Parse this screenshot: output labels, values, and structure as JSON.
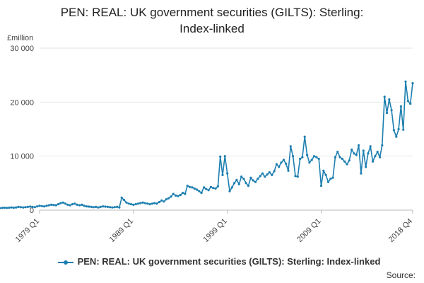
{
  "chart_data": {
    "type": "line",
    "title": [
      "PEN: REAL: UK government securities (GILTS): Sterling:",
      "Index-linked"
    ],
    "ylabel": "£million",
    "ylim": [
      0,
      30000
    ],
    "yticks": [
      0,
      10000,
      20000,
      30000
    ],
    "ytick_labels": [
      "0",
      "10 000",
      "20 000",
      "30 000"
    ],
    "xticks": [
      "1979 Q1",
      "1989 Q1",
      "1999 Q1",
      "2009 Q1",
      "2018 Q4"
    ],
    "grid": true,
    "legend_position": "bottom",
    "color": "#1d7fb0",
    "source_label": "Source:",
    "series": [
      {
        "name": "PEN: REAL: UK government securities (GILTS): Sterling: Index-linked",
        "values": [
          150,
          200,
          300,
          250,
          200,
          300,
          250,
          350,
          400,
          350,
          300,
          350,
          350,
          400,
          450,
          400,
          450,
          500,
          450,
          500,
          600,
          550,
          500,
          550,
          600,
          650,
          600,
          550,
          700,
          800,
          750,
          700,
          800,
          900,
          1000,
          950,
          900,
          1100,
          1300,
          1400,
          1200,
          1000,
          900,
          1100,
          1200,
          1000,
          900,
          1000,
          800,
          700,
          650,
          600,
          550,
          600,
          500,
          600,
          700,
          650,
          600,
          550,
          500,
          550,
          600,
          500,
          2300,
          1900,
          1400,
          1200,
          1100,
          1000,
          1100,
          1200,
          1300,
          1400,
          1300,
          1200,
          1100,
          1200,
          1300,
          1200,
          1500,
          1800,
          1600,
          2000,
          2200,
          2500,
          3000,
          2700,
          2600,
          2800,
          3200,
          3000,
          4500,
          4300,
          4200,
          4000,
          3800,
          3500,
          3200,
          4200,
          3900,
          3700,
          4300,
          4100,
          4000,
          4400,
          9900,
          6500,
          10000,
          6800,
          3500,
          4200,
          5000,
          5600,
          4800,
          6200,
          5800,
          5000,
          4500,
          6000,
          5500,
          5200,
          5800,
          6300,
          6800,
          6200,
          6600,
          7000,
          6500,
          7200,
          8500,
          8000,
          8800,
          9300,
          8600,
          7300,
          11800,
          10000,
          6300,
          6200,
          9500,
          9800,
          13600,
          10200,
          8800,
          9300,
          10000,
          9800,
          9500,
          4500,
          7300,
          6500,
          5200,
          5800,
          6000,
          9800,
          10800,
          9800,
          9500,
          9000,
          8500,
          9200,
          11200,
          10500,
          10200,
          12000,
          6800,
          11000,
          8000,
          10500,
          11800,
          9000,
          10000,
          10800,
          9800,
          12000,
          21000,
          18000,
          20500,
          18500,
          14800,
          13600,
          15000,
          19200,
          14900,
          23800,
          20200,
          19700,
          23500
        ]
      }
    ]
  }
}
